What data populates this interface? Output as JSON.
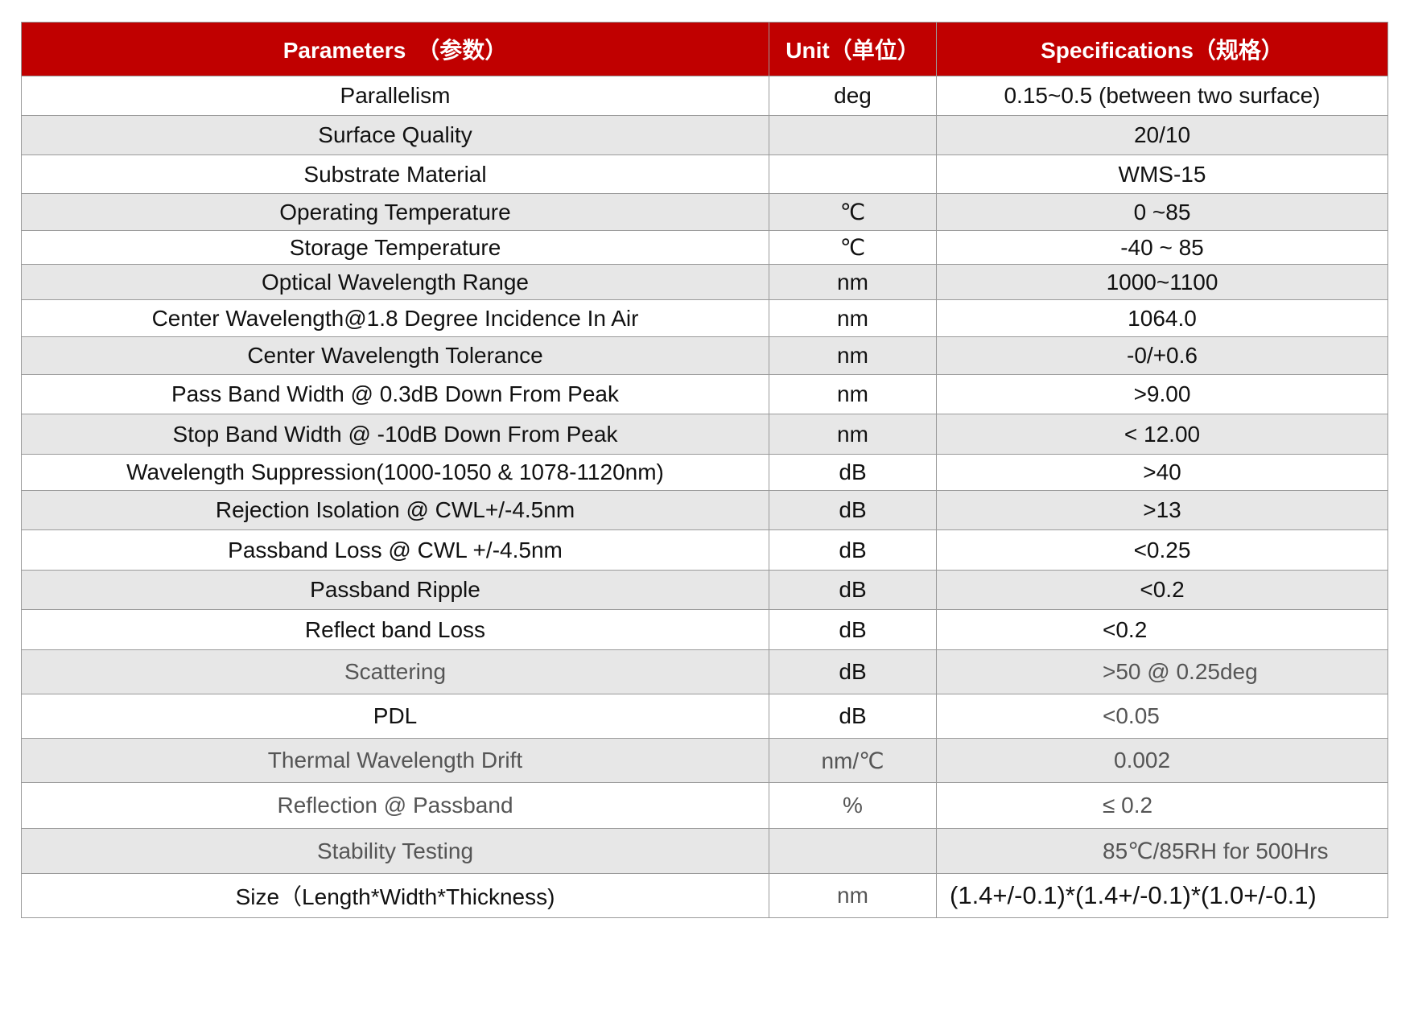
{
  "header": {
    "parameters": "Parameters　（参数）",
    "unit": "Unit（单位）",
    "specifications": "Specifications（规格）"
  },
  "rows": [
    {
      "parameter": "Parallelism",
      "unit": "deg",
      "spec": "0.15~0.5 (between two surface)"
    },
    {
      "parameter": "Surface Quality",
      "unit": "",
      "spec": "20/10"
    },
    {
      "parameter": "Substrate Material",
      "unit": "",
      "spec": "WMS-15"
    },
    {
      "parameter": "Operating Temperature",
      "unit": "℃",
      "spec": "0 ~85"
    },
    {
      "parameter": "Storage Temperature",
      "unit": "℃",
      "spec": "-40 ~ 85"
    },
    {
      "parameter": "Optical Wavelength Range",
      "unit": "nm",
      "spec": "1000~1100"
    },
    {
      "parameter": "Center Wavelength@1.8 Degree Incidence In Air",
      "unit": "nm",
      "spec": "1064.0"
    },
    {
      "parameter": "Center Wavelength Tolerance",
      "unit": "nm",
      "spec": "-0/+0.6"
    },
    {
      "parameter": "Pass Band Width @ 0.3dB Down From Peak",
      "unit": "nm",
      "spec": ">9.00"
    },
    {
      "parameter": "Stop Band Width @ -10dB Down From Peak",
      "unit": "nm",
      "spec": "< 12.00"
    },
    {
      "parameter": "Wavelength Suppression(1000-1050 & 1078-1120nm)",
      "unit": "dB",
      "spec": ">40"
    },
    {
      "parameter": "Rejection Isolation @ CWL+/-4.5nm",
      "unit": "dB",
      "spec": ">13"
    },
    {
      "parameter": "Passband Loss @ CWL +/-4.5nm",
      "unit": "dB",
      "spec": "<0.25"
    },
    {
      "parameter": "Passband Ripple",
      "unit": "dB",
      "spec": "<0.2"
    },
    {
      "parameter": "Reflect band Loss",
      "unit": "dB",
      "spec": "<0.2"
    },
    {
      "parameter": "Scattering",
      "unit": "dB",
      "spec": ">50 @ 0.25deg"
    },
    {
      "parameter": "PDL",
      "unit": "dB",
      "spec": "<0.05"
    },
    {
      "parameter": "Thermal Wavelength Drift",
      "unit": "nm/℃",
      "spec": "0.002"
    },
    {
      "parameter": "Reflection @ Passband",
      "unit": "%",
      "spec": "≤ 0.2"
    },
    {
      "parameter": "Stability Testing",
      "unit": "",
      "spec": "85℃/85RH for 500Hrs"
    },
    {
      "parameter": "Size（Length*Width*Thickness)",
      "unit": "nm",
      "spec": "(1.4+/-0.1)*(1.4+/-0.1)*(1.0+/-0.1)"
    }
  ],
  "colors": {
    "header_bg": "#c00000",
    "header_text": "#ffffff",
    "row_alt_bg": "#e7e7e7",
    "border": "#9a9a9a"
  }
}
